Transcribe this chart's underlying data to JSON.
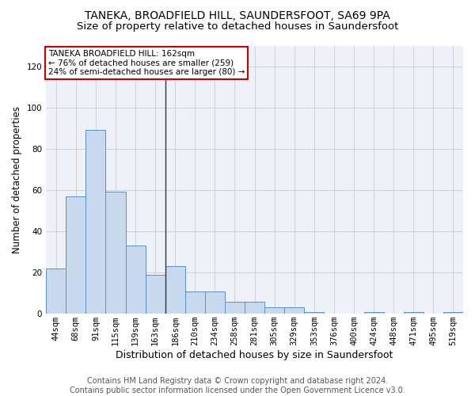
{
  "title_line1": "TANEKA, BROADFIELD HILL, SAUNDERSFOOT, SA69 9PA",
  "title_line2": "Size of property relative to detached houses in Saundersfoot",
  "xlabel": "Distribution of detached houses by size in Saundersfoot",
  "ylabel": "Number of detached properties",
  "footer_line1": "Contains HM Land Registry data © Crown copyright and database right 2024.",
  "footer_line2": "Contains public sector information licensed under the Open Government Licence v3.0.",
  "bins": [
    "44sqm",
    "68sqm",
    "91sqm",
    "115sqm",
    "139sqm",
    "163sqm",
    "186sqm",
    "210sqm",
    "234sqm",
    "258sqm",
    "281sqm",
    "305sqm",
    "329sqm",
    "353sqm",
    "376sqm",
    "400sqm",
    "424sqm",
    "448sqm",
    "471sqm",
    "495sqm",
    "519sqm"
  ],
  "values": [
    22,
    57,
    89,
    59,
    33,
    19,
    23,
    11,
    11,
    6,
    6,
    3,
    3,
    1,
    0,
    0,
    1,
    0,
    1,
    0,
    1
  ],
  "bar_color": "#c9d9ed",
  "bar_edge_color": "#5b8fc9",
  "highlight_bin_index": 5,
  "vline_color": "#333333",
  "annotation_text": "TANEKA BROADFIELD HILL: 162sqm\n← 76% of detached houses are smaller (259)\n24% of semi-detached houses are larger (80) →",
  "annotation_box_color": "#ffffff",
  "annotation_box_edge": "#cc0000",
  "ylim": [
    0,
    130
  ],
  "yticks": [
    0,
    20,
    40,
    60,
    80,
    100,
    120
  ],
  "grid_color": "#cccccc",
  "bg_color": "#eef2f8",
  "title1_fontsize": 10,
  "title2_fontsize": 9.5,
  "xlabel_fontsize": 9,
  "ylabel_fontsize": 8.5,
  "tick_fontsize": 7.5,
  "footer_fontsize": 7
}
